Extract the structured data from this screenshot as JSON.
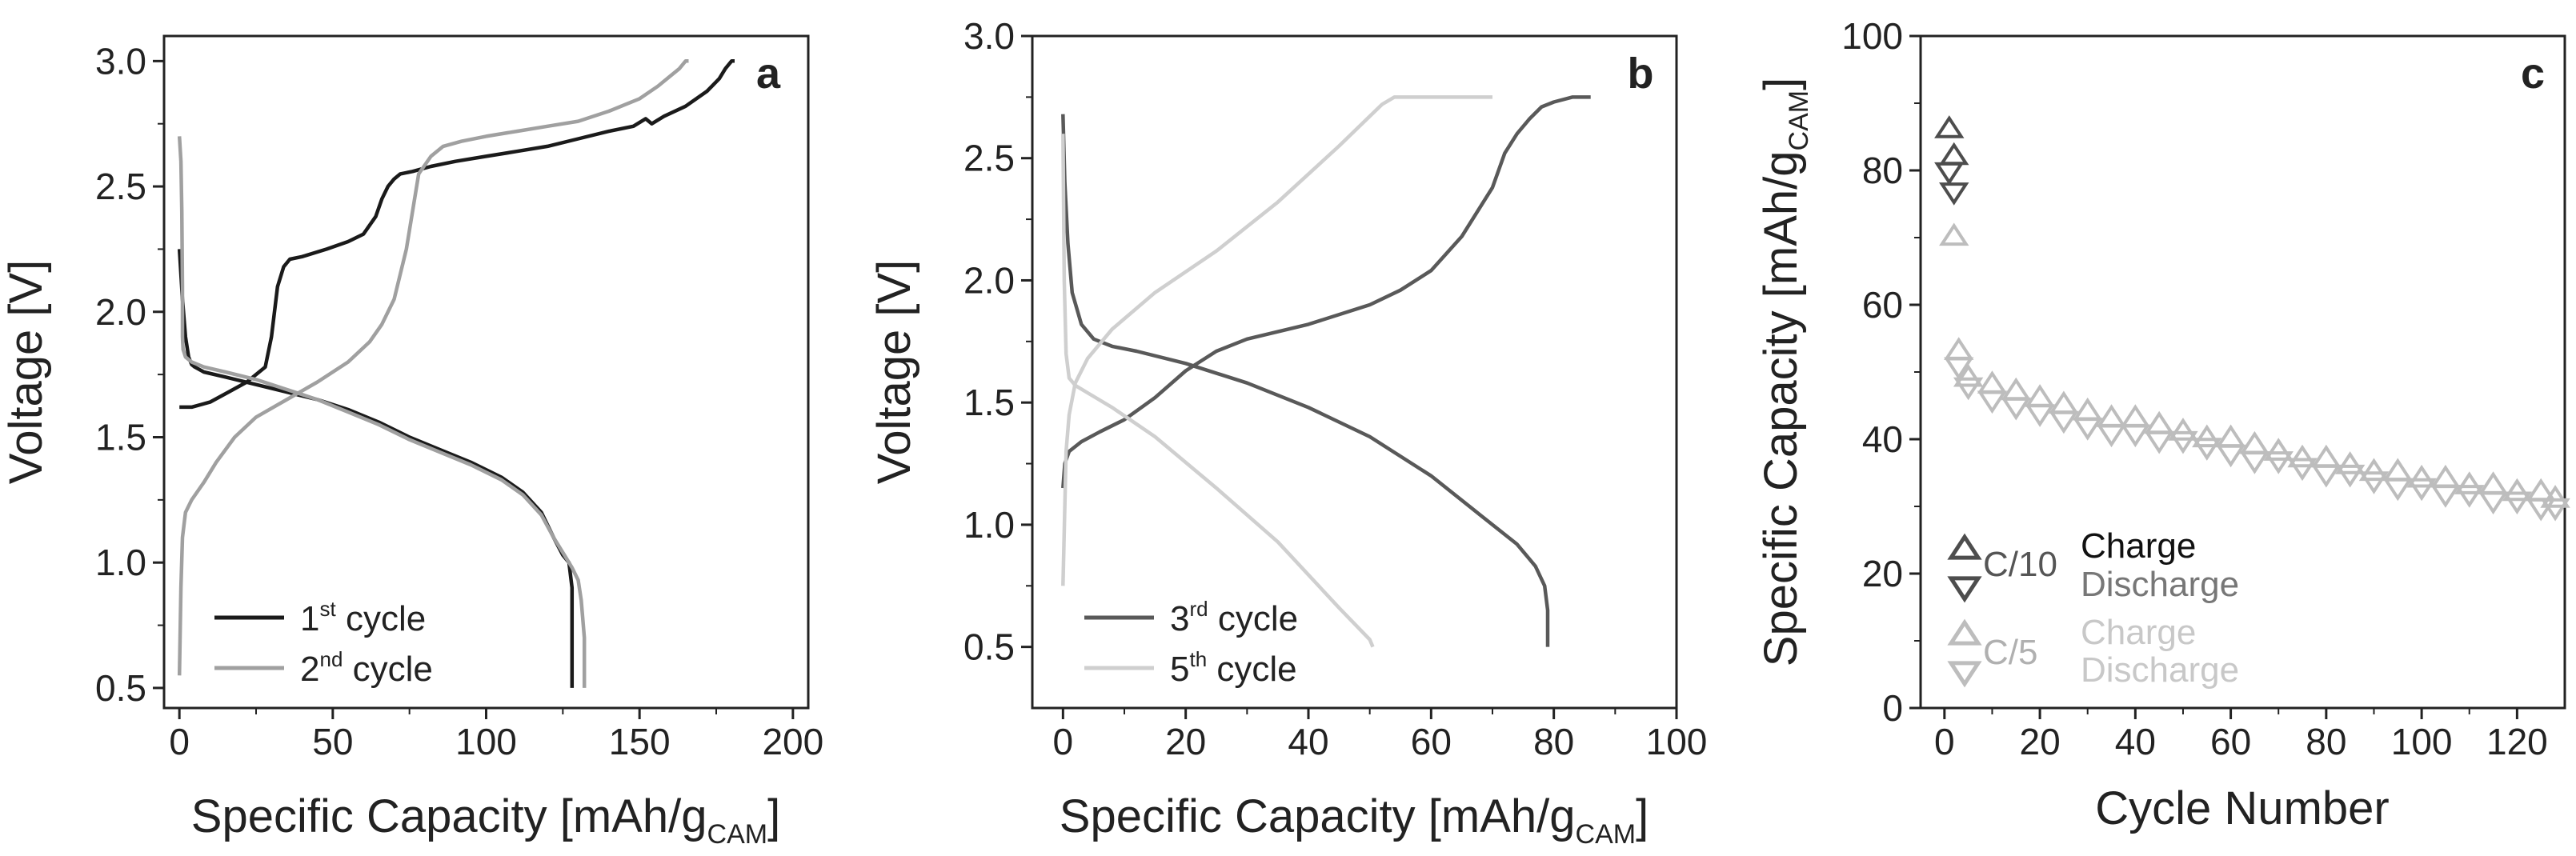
{
  "colors": {
    "black": "#111111",
    "c1": "#1a1a1a",
    "c2": "#a0a0a0",
    "c3": "#595959",
    "c5": "#cfcfcf",
    "c10": "#4d4d4d",
    "c5rate": "#bdbdbd",
    "axis": "#222222"
  },
  "chart_data": [
    {
      "type": "line",
      "panel": "a",
      "xlabel": "Specific Capacity [mAh/g",
      "xlabel_sub": "CAM",
      "xlabel_end": "]",
      "ylabel": "Voltage [V]",
      "xlim": [
        -5,
        205
      ],
      "ylim": [
        0.42,
        3.1
      ],
      "xticks": [
        0,
        50,
        100,
        150,
        200
      ],
      "xtick_labels": [
        "0",
        "50",
        "100",
        "150",
        "200"
      ],
      "yticks": [
        0.5,
        1.0,
        1.5,
        2.0,
        2.5,
        3.0
      ],
      "ytick_labels": [
        "0.5",
        "1.0",
        "1.5",
        "2.0",
        "2.5",
        "3.0"
      ],
      "legend": [
        {
          "prefix": "1",
          "sup": "st",
          "suffix": " cycle"
        },
        {
          "prefix": "2",
          "sup": "nd",
          "suffix": " cycle"
        }
      ],
      "series": [
        {
          "name": "1st cycle discharge",
          "color_key": "c1",
          "x": [
            0,
            1,
            2,
            3,
            4,
            5,
            8,
            15,
            25,
            35,
            45,
            55,
            65,
            75,
            85,
            95,
            105,
            112,
            118,
            122,
            125,
            127,
            128,
            128,
            128
          ],
          "y": [
            2.25,
            2.05,
            1.9,
            1.82,
            1.79,
            1.78,
            1.76,
            1.74,
            1.71,
            1.68,
            1.65,
            1.61,
            1.56,
            1.5,
            1.45,
            1.4,
            1.34,
            1.28,
            1.2,
            1.1,
            1.03,
            1.0,
            0.9,
            0.7,
            0.5
          ]
        },
        {
          "name": "1st cycle charge",
          "color_key": "c1",
          "x": [
            0,
            4,
            10,
            16,
            22,
            28,
            30,
            32,
            34,
            36,
            40,
            48,
            55,
            60,
            64,
            66,
            68,
            70,
            72,
            76,
            82,
            90,
            100,
            110,
            120,
            130,
            140,
            148,
            152,
            154,
            158,
            165,
            172,
            176,
            178,
            180,
            181
          ],
          "y": [
            1.62,
            1.62,
            1.64,
            1.68,
            1.72,
            1.78,
            1.9,
            2.1,
            2.18,
            2.21,
            2.22,
            2.25,
            2.28,
            2.31,
            2.38,
            2.45,
            2.5,
            2.53,
            2.55,
            2.56,
            2.58,
            2.6,
            2.62,
            2.64,
            2.66,
            2.69,
            2.72,
            2.74,
            2.77,
            2.75,
            2.78,
            2.82,
            2.88,
            2.93,
            2.97,
            3.0,
            3.0
          ]
        },
        {
          "name": "2nd cycle discharge",
          "color_key": "c2",
          "x": [
            0,
            0.5,
            0.8,
            1,
            1,
            1.2,
            2,
            4,
            8,
            15,
            25,
            35,
            45,
            55,
            65,
            75,
            85,
            95,
            105,
            112,
            118,
            122,
            126,
            128,
            130,
            131,
            132,
            132,
            132
          ],
          "y": [
            2.7,
            2.6,
            2.4,
            2.1,
            1.9,
            1.85,
            1.82,
            1.8,
            1.78,
            1.76,
            1.73,
            1.69,
            1.65,
            1.6,
            1.55,
            1.49,
            1.44,
            1.39,
            1.33,
            1.27,
            1.19,
            1.1,
            1.02,
            0.98,
            0.93,
            0.85,
            0.7,
            0.6,
            0.5
          ]
        },
        {
          "name": "2nd cycle charge",
          "color_key": "c2",
          "x": [
            0,
            0.5,
            1,
            2,
            4,
            8,
            12,
            18,
            25,
            35,
            45,
            55,
            62,
            66,
            70,
            74,
            78,
            82,
            86,
            92,
            100,
            110,
            120,
            130,
            140,
            150,
            156,
            160,
            163,
            165,
            166
          ],
          "y": [
            0.55,
            0.9,
            1.1,
            1.2,
            1.25,
            1.32,
            1.4,
            1.5,
            1.58,
            1.65,
            1.72,
            1.8,
            1.88,
            1.95,
            2.05,
            2.25,
            2.55,
            2.62,
            2.66,
            2.68,
            2.7,
            2.72,
            2.74,
            2.76,
            2.8,
            2.85,
            2.9,
            2.94,
            2.97,
            3.0,
            3.0
          ]
        }
      ]
    },
    {
      "type": "line",
      "panel": "b",
      "xlabel": "Specific Capacity [mAh/g",
      "xlabel_sub": "CAM",
      "xlabel_end": "]",
      "ylabel": "Voltage [V]",
      "xlim": [
        -5,
        100
      ],
      "ylim": [
        0.25,
        3.0
      ],
      "xticks": [
        0,
        20,
        40,
        60,
        80,
        100
      ],
      "xtick_labels": [
        "0",
        "20",
        "40",
        "60",
        "80",
        "100"
      ],
      "yticks": [
        0.5,
        1.0,
        1.5,
        2.0,
        2.5,
        3.0
      ],
      "ytick_labels": [
        "0.5",
        "1.0",
        "1.5",
        "2.0",
        "2.5",
        "3.0"
      ],
      "legend": [
        {
          "prefix": "3",
          "sup": "rd",
          "suffix": " cycle"
        },
        {
          "prefix": "5",
          "sup": "th",
          "suffix": " cycle"
        }
      ],
      "series": [
        {
          "name": "3rd cycle discharge",
          "color_key": "c3",
          "x": [
            0,
            0.3,
            0.8,
            1.5,
            3,
            5,
            8,
            12,
            20,
            30,
            40,
            50,
            60,
            68,
            74,
            77,
            78.5,
            79,
            79,
            79
          ],
          "y": [
            2.68,
            2.4,
            2.15,
            1.95,
            1.82,
            1.76,
            1.73,
            1.71,
            1.66,
            1.58,
            1.48,
            1.36,
            1.2,
            1.04,
            0.92,
            0.83,
            0.75,
            0.65,
            0.55,
            0.5
          ]
        },
        {
          "name": "3rd cycle charge",
          "color_key": "c3",
          "x": [
            0,
            0.3,
            1,
            3,
            6,
            10,
            15,
            20,
            25,
            30,
            40,
            50,
            55,
            60,
            65,
            70,
            72,
            74,
            76,
            78,
            80,
            83,
            86
          ],
          "y": [
            1.15,
            1.25,
            1.3,
            1.34,
            1.38,
            1.43,
            1.52,
            1.63,
            1.71,
            1.76,
            1.82,
            1.9,
            1.96,
            2.04,
            2.18,
            2.38,
            2.52,
            2.6,
            2.66,
            2.71,
            2.73,
            2.75,
            2.75
          ]
        },
        {
          "name": "5th cycle discharge",
          "color_key": "c5",
          "x": [
            0,
            0.2,
            0.5,
            1,
            2,
            4,
            8,
            15,
            25,
            35,
            45,
            50,
            50.5
          ],
          "y": [
            2.6,
            2.0,
            1.7,
            1.6,
            1.57,
            1.54,
            1.48,
            1.36,
            1.15,
            0.93,
            0.66,
            0.53,
            0.5
          ]
        },
        {
          "name": "5th cycle charge",
          "color_key": "c5",
          "x": [
            0,
            0.5,
            1,
            2,
            4,
            8,
            15,
            25,
            35,
            45,
            52,
            54,
            60,
            65,
            70
          ],
          "y": [
            0.75,
            1.3,
            1.45,
            1.58,
            1.68,
            1.8,
            1.95,
            2.12,
            2.32,
            2.55,
            2.72,
            2.75,
            2.75,
            2.75,
            2.75
          ]
        }
      ]
    },
    {
      "type": "scatter",
      "panel": "c",
      "xlabel": "Cycle Number",
      "ylabel": "Specific Capacity [mAh/g",
      "ylabel_sub": "CAM",
      "ylabel_end": "]",
      "xlim": [
        -5,
        130
      ],
      "ylim": [
        0,
        100
      ],
      "xticks": [
        0,
        20,
        40,
        60,
        80,
        100,
        120
      ],
      "xtick_labels": [
        "0",
        "20",
        "40",
        "60",
        "80",
        "100",
        "120"
      ],
      "yticks": [
        0,
        20,
        40,
        60,
        80,
        100
      ],
      "ytick_labels": [
        "0",
        "20",
        "40",
        "60",
        "80",
        "100"
      ],
      "legend": {
        "rate1": "C/10",
        "rate2": "C/5",
        "charge": "Charge",
        "discharge": "Discharge"
      },
      "series": [
        {
          "name": "C/10 Charge",
          "marker": "triangle-up",
          "color_key": "c10",
          "x": [
            1,
            2
          ],
          "y": [
            86,
            82
          ]
        },
        {
          "name": "C/10 Discharge",
          "marker": "triangle-down",
          "color_key": "c10",
          "x": [
            1,
            2
          ],
          "y": [
            80,
            77
          ]
        },
        {
          "name": "C/5 Charge",
          "marker": "triangle-up",
          "color_key": "c5rate",
          "x": [
            2,
            3,
            5,
            10,
            15,
            20,
            25,
            30,
            35,
            40,
            45,
            50,
            55,
            60,
            65,
            70,
            75,
            80,
            85,
            90,
            95,
            100,
            105,
            110,
            115,
            120,
            125,
            128
          ],
          "y": [
            70,
            53,
            49,
            48,
            47,
            46,
            45,
            44,
            43,
            43,
            42,
            41,
            40,
            40,
            39,
            38,
            37,
            37,
            36,
            35,
            35,
            34,
            34,
            33,
            33,
            32,
            32,
            31
          ]
        },
        {
          "name": "C/5 Discharge",
          "marker": "triangle-down",
          "color_key": "c5rate",
          "x": [
            3,
            5,
            10,
            15,
            20,
            25,
            30,
            35,
            40,
            45,
            50,
            55,
            60,
            65,
            70,
            75,
            80,
            85,
            90,
            95,
            100,
            105,
            110,
            115,
            120,
            125,
            128
          ],
          "y": [
            51,
            48,
            46,
            45,
            44,
            43,
            42,
            41,
            41,
            40,
            40,
            39,
            38,
            37,
            37,
            36,
            35,
            35,
            34,
            33,
            33,
            32,
            32,
            31,
            31,
            30,
            30
          ]
        }
      ]
    }
  ]
}
